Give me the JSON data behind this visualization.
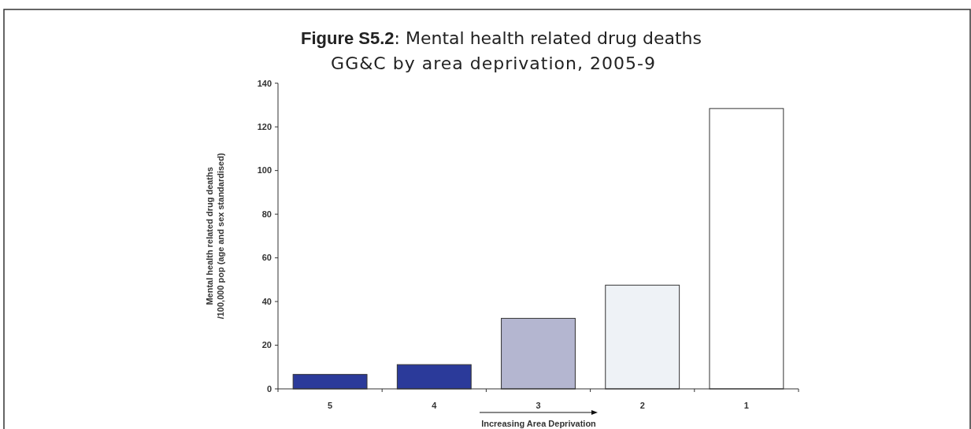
{
  "chart_data": {
    "type": "bar",
    "title": "Figure S5.2: Mental health related drug deaths",
    "subtitle": "GG&C by area deprivation, 2005-9",
    "xlabel": "Increasing Area Deprivation",
    "ylabel": "Mental health related drug deaths /100,000 pop (age and sex standardised)",
    "categories": [
      "5",
      "4",
      "3",
      "2",
      "1"
    ],
    "values": [
      6.6,
      11.1,
      32.3,
      47.5,
      128.4
    ],
    "colors": [
      "#2b3a9a",
      "#2b3a9a",
      "#b4b6d0",
      "#eef2f6",
      "#ffffff"
    ],
    "ylim": [
      0,
      140
    ],
    "yticks": [
      0,
      20,
      40,
      60,
      80,
      100,
      120,
      140
    ],
    "grid": false
  }
}
